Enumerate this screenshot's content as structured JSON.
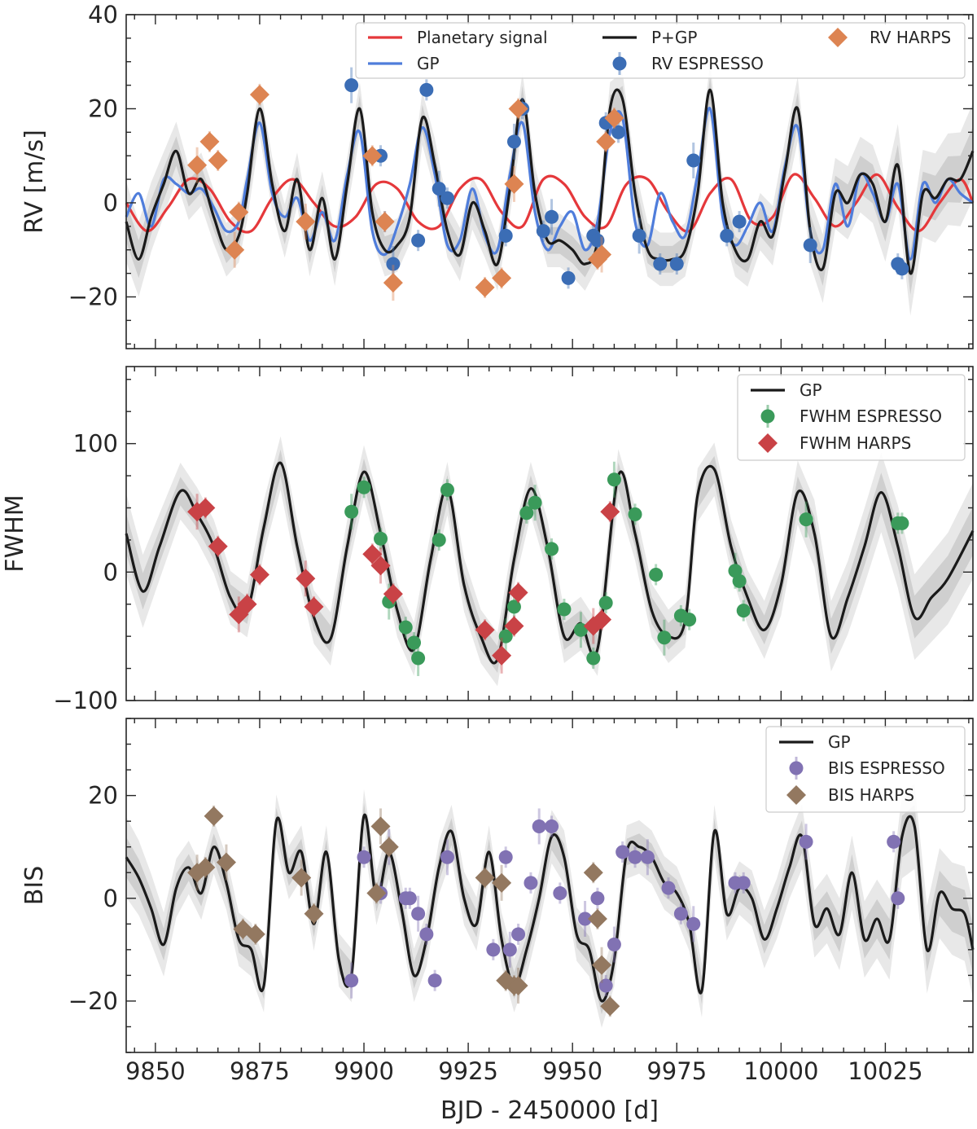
{
  "chart_data": [
    {
      "type": "line",
      "ylabel": "RV [m/s]",
      "xlim": [
        9843,
        10046
      ],
      "ylim": [
        -31,
        40
      ],
      "yticks": [
        -20,
        0,
        20,
        40
      ],
      "legend": "top-right",
      "series": [
        {
          "name": "Planetary signal",
          "color": "#e5383b",
          "kind": "line",
          "x": [
            9843,
            9848,
            9853,
            9858,
            9863,
            9868,
            9873,
            9878,
            9883,
            9888,
            9893,
            9898,
            9903,
            9908,
            9913,
            9918,
            9923,
            9928,
            9933,
            9938,
            9943,
            9948,
            9953,
            9958,
            9963,
            9968,
            9973,
            9978,
            9983,
            9988,
            9993,
            9998,
            10003,
            10008,
            10013,
            10018,
            10023,
            10028,
            10033,
            10038,
            10043,
            10046
          ],
          "y": [
            0,
            -6,
            -1,
            5,
            3,
            -4,
            -6,
            1,
            5,
            0,
            -5,
            -3,
            4,
            3,
            -4,
            -5,
            3,
            5,
            -2,
            -5,
            5,
            4,
            -3,
            -5,
            4,
            5,
            -2,
            -6,
            2,
            5,
            -4,
            -3,
            6,
            1,
            -5,
            0,
            6,
            -1,
            -6,
            0,
            5,
            0
          ]
        },
        {
          "name": "GP",
          "color": "#4f7ddb",
          "kind": "line",
          "x": [
            9843,
            9846,
            9849,
            9852,
            9855,
            9858,
            9861,
            9864,
            9867,
            9870,
            9872,
            9875,
            9878,
            9881,
            9884,
            9887,
            9890,
            9893,
            9896,
            9899,
            9902,
            9905,
            9908,
            9911,
            9914,
            9917,
            9920,
            9923,
            9926,
            9929,
            9932,
            9935,
            9938,
            9941,
            9944,
            9947,
            9950,
            9953,
            9956,
            9959,
            9962,
            9965,
            9968,
            9971,
            9974,
            9977,
            9980,
            9983,
            9986,
            9989,
            9992,
            9995,
            9998,
            10001,
            10004,
            10007,
            10010,
            10013,
            10016,
            10019,
            10022,
            10025,
            10028,
            10031,
            10034,
            10037,
            10040,
            10043,
            10046
          ],
          "y": [
            -3,
            2,
            -5,
            5,
            4,
            2,
            3,
            -1,
            -6,
            -4,
            5,
            17,
            2,
            -3,
            1,
            -8,
            -2,
            -8,
            6,
            15,
            -6,
            -11,
            -5,
            4,
            16,
            6,
            -9,
            -8,
            3,
            -7,
            -10,
            6,
            17,
            -2,
            -10,
            -5,
            -2,
            -10,
            -4,
            15,
            18,
            -4,
            -9,
            2,
            -4,
            -7,
            6,
            20,
            -3,
            -9,
            -5,
            0,
            -6,
            8,
            16,
            -6,
            -10,
            4,
            -5,
            6,
            2,
            -4,
            4,
            -12,
            4,
            0,
            5,
            2,
            0
          ]
        },
        {
          "name": "P+GP",
          "color": "#1a1a1a",
          "kind": "line",
          "x": [
            9843,
            9846,
            9849,
            9852,
            9855,
            9858,
            9861,
            9864,
            9867,
            9870,
            9872,
            9875,
            9878,
            9881,
            9884,
            9887,
            9890,
            9893,
            9896,
            9899,
            9902,
            9905,
            9908,
            9911,
            9914,
            9917,
            9920,
            9923,
            9926,
            9929,
            9932,
            9935,
            9938,
            9941,
            9944,
            9947,
            9950,
            9953,
            9956,
            9959,
            9962,
            9965,
            9968,
            9971,
            9974,
            9977,
            9980,
            9983,
            9986,
            9989,
            9992,
            9995,
            9998,
            10001,
            10004,
            10007,
            10010,
            10013,
            10016,
            10019,
            10022,
            10025,
            10028,
            10031,
            10034,
            10037,
            10040,
            10043,
            10046
          ],
          "y": [
            -4,
            -12,
            -3,
            4,
            11,
            2,
            5,
            -3,
            -10,
            -7,
            2,
            20,
            4,
            -6,
            5,
            -10,
            1,
            -12,
            4,
            20,
            -2,
            -10,
            -9,
            -3,
            18,
            8,
            -6,
            -11,
            0,
            -6,
            -13,
            3,
            22,
            2,
            -8,
            -8,
            -10,
            -13,
            -8,
            20,
            22,
            2,
            -10,
            -12,
            -12,
            -10,
            2,
            24,
            0,
            -10,
            -12,
            -4,
            -7,
            7,
            20,
            -6,
            -14,
            2,
            0,
            6,
            4,
            -4,
            8,
            -15,
            2,
            1,
            5,
            5,
            11
          ]
        },
        {
          "name": "RV ESPRESSO",
          "color": "#3b6db5",
          "kind": "scatter",
          "x": [
            9897,
            9904,
            9905,
            9907,
            9913,
            9915,
            9918,
            9920,
            9934,
            9936,
            9938,
            9943,
            9945,
            9949,
            9955,
            9956,
            9958,
            9961,
            9966,
            9971,
            9975,
            9979,
            9987,
            9990,
            10007,
            10028,
            10029
          ],
          "y": [
            25,
            10,
            -4,
            -13,
            -8,
            24,
            3,
            1,
            -7,
            13,
            20,
            -6,
            -3,
            -16,
            -7,
            -8,
            17,
            15,
            -7,
            -13,
            -13,
            9,
            -7,
            -4,
            -9,
            -13,
            -14
          ]
        },
        {
          "name": "RV HARPS",
          "color": "#dd8452",
          "kind": "scatter",
          "x": [
            9860,
            9863,
            9865,
            9869,
            9870,
            9875,
            9886,
            9902,
            9905,
            9907,
            9929,
            9933,
            9936,
            9937,
            9956,
            9957,
            9958,
            9960
          ],
          "y": [
            8,
            13,
            9,
            -10,
            -2,
            23,
            -4,
            10,
            -4,
            -17,
            -18,
            -16,
            4,
            20,
            -12,
            -11,
            13,
            18
          ]
        }
      ]
    },
    {
      "type": "line",
      "ylabel": "FWHM",
      "xlim": [
        9843,
        10046
      ],
      "ylim": [
        -100,
        160
      ],
      "yticks": [
        -100,
        0,
        100
      ],
      "legend": "top-right",
      "series": [
        {
          "name": "GP",
          "color": "#1a1a1a",
          "kind": "line",
          "x": [
            9843,
            9847,
            9851,
            9856,
            9860,
            9864,
            9868,
            9872,
            9876,
            9880,
            9884,
            9888,
            9892,
            9896,
            9900,
            9904,
            9908,
            9912,
            9916,
            9920,
            9924,
            9928,
            9932,
            9936,
            9940,
            9944,
            9948,
            9952,
            9956,
            9961,
            9965,
            9969,
            9973,
            9977,
            9980,
            9984,
            9988,
            9992,
            9996,
            10000,
            10004,
            10008,
            10012,
            10016,
            10020,
            10024,
            10028,
            10032,
            10036,
            10040,
            10046
          ],
          "y": [
            30,
            -15,
            20,
            63,
            45,
            20,
            -20,
            -30,
            35,
            85,
            20,
            -35,
            -52,
            20,
            78,
            30,
            -30,
            -60,
            10,
            65,
            -10,
            -50,
            -68,
            10,
            65,
            20,
            -50,
            -40,
            -60,
            75,
            30,
            -30,
            -50,
            -38,
            60,
            80,
            20,
            -20,
            -45,
            -10,
            62,
            30,
            -50,
            -20,
            20,
            62,
            20,
            -35,
            -20,
            -5,
            32
          ]
        },
        {
          "name": "FWHM ESPRESSO",
          "color": "#3a9a5a",
          "kind": "scatter",
          "x": [
            9897,
            9900,
            9904,
            9906,
            9910,
            9912,
            9913,
            9918,
            9920,
            9934,
            9936,
            9939,
            9941,
            9945,
            9948,
            9952,
            9955,
            9958,
            9960,
            9965,
            9970,
            9972,
            9976,
            9978,
            9989,
            9990,
            9991,
            10006,
            10028,
            10029
          ],
          "y": [
            47,
            66,
            26,
            -23,
            -43,
            -55,
            -67,
            25,
            64,
            -50,
            -27,
            46,
            54,
            18,
            -29,
            -45,
            -67,
            -24,
            72,
            45,
            -2,
            -51,
            -34,
            -37,
            1,
            -7,
            -30,
            41,
            38,
            38
          ]
        },
        {
          "name": "FWHM HARPS",
          "color": "#c94246",
          "kind": "scatter",
          "x": [
            9860,
            9862,
            9865,
            9870,
            9872,
            9875,
            9886,
            9888,
            9902,
            9904,
            9907,
            9929,
            9933,
            9936,
            9937,
            9955,
            9957,
            9959
          ],
          "y": [
            47,
            50,
            20,
            -33,
            -25,
            -2,
            -5,
            -27,
            14,
            5,
            -17,
            -45,
            -65,
            -42,
            -16,
            -42,
            -37,
            47
          ]
        }
      ]
    },
    {
      "type": "line",
      "ylabel": "BIS",
      "xlim": [
        9843,
        10046
      ],
      "ylim": [
        -30,
        35
      ],
      "yticks": [
        -20,
        0,
        20
      ],
      "xticks": [
        9850,
        9875,
        9900,
        9925,
        9950,
        9975,
        10000,
        10025
      ],
      "xlabel": "BJD - 2450000 [d]",
      "legend": "top-right",
      "series": [
        {
          "name": "GP",
          "color": "#1a1a1a",
          "kind": "line",
          "x": [
            9843,
            9846,
            9849,
            9852,
            9855,
            9858,
            9861,
            9864,
            9867,
            9870,
            9873,
            9876,
            9879,
            9882,
            9885,
            9888,
            9891,
            9894,
            9897,
            9900,
            9903,
            9906,
            9909,
            9912,
            9915,
            9918,
            9921,
            9924,
            9927,
            9930,
            9933,
            9936,
            9939,
            9942,
            9945,
            9948,
            9951,
            9954,
            9957,
            9960,
            9963,
            9966,
            9969,
            9972,
            9975,
            9978,
            9981,
            9984,
            9987,
            9990,
            9993,
            9996,
            9999,
            10002,
            10005,
            10008,
            10011,
            10014,
            10017,
            10020,
            10023,
            10026,
            10029,
            10032,
            10035,
            10038,
            10041,
            10044,
            10046
          ],
          "y": [
            8,
            4,
            -2,
            -9,
            2,
            6,
            1,
            10,
            3,
            -8,
            -10,
            -17,
            15,
            5,
            9,
            -5,
            9,
            -12,
            -15,
            16,
            0,
            9,
            -2,
            -15,
            -8,
            6,
            13,
            0,
            -5,
            9,
            -8,
            -17,
            -10,
            0,
            12,
            8,
            -7,
            -10,
            -20,
            -12,
            9,
            10,
            8,
            3,
            1,
            -5,
            -18,
            13,
            -3,
            2,
            0,
            -8,
            -2,
            6,
            12,
            -5,
            -2,
            -7,
            5,
            -8,
            -4,
            -8,
            12,
            14,
            -10,
            1,
            -2,
            -3,
            -10
          ]
        },
        {
          "name": "BIS ESPRESSO",
          "color": "#8172b3",
          "kind": "scatter",
          "x": [
            9897,
            9900,
            9904,
            9906,
            9910,
            9911,
            9913,
            9915,
            9917,
            9920,
            9931,
            9934,
            9935,
            9937,
            9940,
            9942,
            9945,
            9947,
            9953,
            9956,
            9958,
            9960,
            9962,
            9965,
            9968,
            9973,
            9976,
            9979,
            9989,
            9991,
            10006,
            10027,
            10028
          ],
          "y": [
            -16,
            8,
            1,
            10,
            0,
            0,
            -3,
            -7,
            -16,
            8,
            -10,
            8,
            -10,
            -7,
            3,
            14,
            14,
            1,
            -4,
            0,
            -17,
            -9,
            9,
            8,
            8,
            2,
            -3,
            -5,
            3,
            3,
            11,
            11,
            0
          ]
        },
        {
          "name": "BIS HARPS",
          "color": "#937860",
          "kind": "scatter",
          "x": [
            9860,
            9862,
            9864,
            9867,
            9871,
            9874,
            9885,
            9888,
            9903,
            9904,
            9906,
            9929,
            9933,
            9934,
            9936,
            9937,
            9955,
            9956,
            9957,
            9959
          ],
          "y": [
            5,
            6,
            16,
            7,
            -6,
            -7,
            4,
            -3,
            1,
            14,
            10,
            4,
            3,
            -16,
            -17,
            -17,
            5,
            -4,
            -13,
            -21
          ]
        }
      ]
    }
  ]
}
